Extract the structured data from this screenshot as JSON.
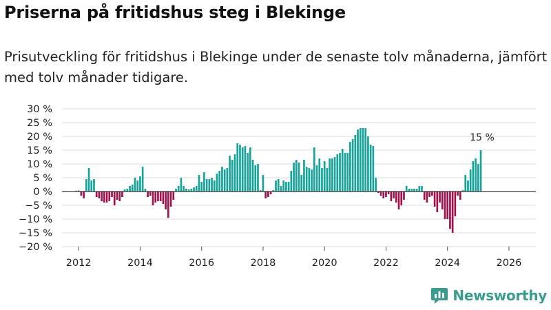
{
  "title": "Priserna på fritidshus steg i Blekinge",
  "subtitle": "Prisutveckling för fritidshus i Blekinge under de senaste tolv månaderna, jämfört med tolv månader tidigare.",
  "brand": "Newsworthy",
  "colors": {
    "positive": "#16a39a",
    "negative": "#a0124d",
    "grid": "#dddddd",
    "brand": "#3a9c8c"
  },
  "chart_data": {
    "type": "bar",
    "title": "Priserna på fritidshus steg i Blekinge",
    "xlabel": "",
    "ylabel": "",
    "x_start": "2011-12",
    "ylim": [
      -20,
      30
    ],
    "yticks": [
      30,
      25,
      20,
      15,
      10,
      5,
      0,
      -5,
      -10,
      -15,
      -20
    ],
    "ytick_labels": [
      "30 %",
      "25 %",
      "20 %",
      "15 %",
      "10 %",
      "5 %",
      "0 %",
      "−5 %",
      "−10 %",
      "−15 %",
      "−20 %"
    ],
    "xticks": [
      "2012",
      "2014",
      "2016",
      "2018",
      "2020",
      "2022",
      "2024",
      "2026"
    ],
    "annotation": "15 %",
    "values": [
      0.3,
      0.4,
      -1.5,
      -2.5,
      4.5,
      8.5,
      4.0,
      4.5,
      -2.0,
      -2.5,
      -3.5,
      -4.0,
      -4.0,
      -3.5,
      -2.0,
      -5.0,
      -3.0,
      -3.5,
      -2.0,
      0.8,
      1.0,
      2.0,
      2.5,
      5.0,
      4.0,
      5.5,
      9.0,
      1.0,
      -2.0,
      -1.5,
      -5.0,
      -4.0,
      -3.5,
      -3.5,
      -4.5,
      -6.5,
      -9.5,
      -5.5,
      -3.0,
      1.0,
      2.0,
      5.0,
      2.0,
      1.0,
      0.8,
      1.0,
      1.5,
      2.0,
      6.0,
      3.5,
      7.0,
      4.5,
      4.5,
      5.0,
      4.0,
      6.5,
      7.5,
      9.0,
      8.0,
      8.5,
      13.0,
      11.5,
      13.5,
      17.5,
      17.0,
      16.0,
      16.5,
      14.0,
      16.0,
      11.5,
      9.5,
      10.0,
      0.5,
      6.0,
      -2.5,
      -2.0,
      -1.0,
      0.5,
      4.0,
      4.5,
      2.0,
      4.0,
      3.5,
      3.5,
      7.5,
      10.5,
      11.5,
      10.5,
      6.0,
      11.5,
      9.0,
      8.5,
      8.0,
      16.0,
      9.5,
      12.0,
      8.5,
      11.0,
      8.5,
      12.0,
      12.0,
      12.5,
      13.5,
      14.0,
      15.5,
      14.0,
      14.0,
      18.0,
      19.0,
      20.5,
      22.5,
      23.0,
      23.0,
      23.0,
      20.0,
      17.0,
      16.5,
      5.0,
      -0.5,
      -1.5,
      -2.5,
      -2.0,
      -1.0,
      -3.5,
      -2.5,
      -4.0,
      -6.5,
      -5.0,
      -3.0,
      2.0,
      1.0,
      1.0,
      1.0,
      1.0,
      2.0,
      2.0,
      -3.0,
      -4.0,
      -2.0,
      -1.5,
      -5.5,
      -7.5,
      -4.0,
      -6.5,
      -10.0,
      -10.0,
      -13.5,
      -15.0,
      -9.0,
      -1.5,
      -3.0,
      0.5,
      6.0,
      4.0,
      8.0,
      11.0,
      12.0,
      10.0,
      15.0
    ]
  }
}
